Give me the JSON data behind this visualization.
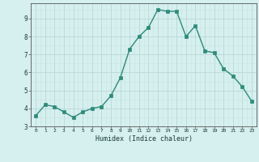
{
  "x": [
    0,
    1,
    2,
    3,
    4,
    5,
    6,
    7,
    8,
    9,
    10,
    11,
    12,
    13,
    14,
    15,
    16,
    17,
    18,
    19,
    20,
    21,
    22,
    23
  ],
  "y": [
    3.6,
    4.2,
    4.1,
    3.8,
    3.5,
    3.8,
    4.0,
    4.1,
    4.7,
    5.7,
    7.3,
    8.0,
    8.5,
    9.5,
    9.4,
    9.4,
    8.0,
    8.6,
    7.2,
    7.1,
    6.2,
    5.8,
    5.2,
    4.4
  ],
  "xlabel": "Humidex (Indice chaleur)",
  "xlim": [
    -0.5,
    23.5
  ],
  "ylim": [
    3.0,
    9.85
  ],
  "yticks": [
    3,
    4,
    5,
    6,
    7,
    8,
    9
  ],
  "xticks": [
    0,
    1,
    2,
    3,
    4,
    5,
    6,
    7,
    8,
    9,
    10,
    11,
    12,
    13,
    14,
    15,
    16,
    17,
    18,
    19,
    20,
    21,
    22,
    23
  ],
  "line_color": "#2e8b7a",
  "marker_color": "#2e8b7a",
  "bg_color": "#d6efef",
  "grid_color": "#b8d8d8",
  "grid_minor_color": "#c8e4e4"
}
